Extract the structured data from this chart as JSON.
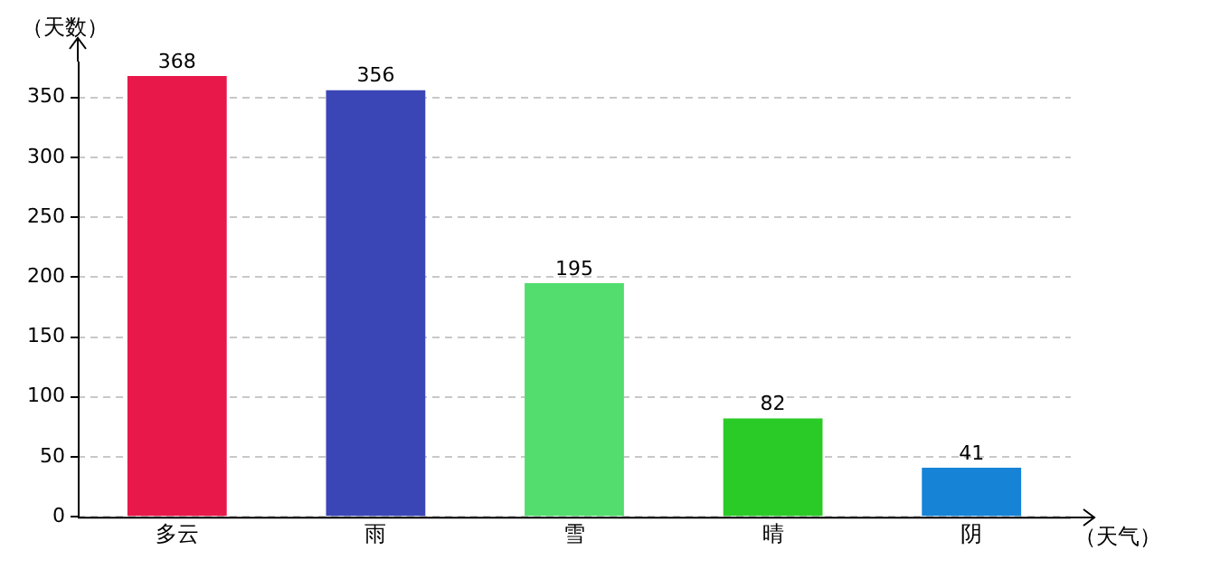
{
  "chart_data": {
    "type": "bar",
    "xlabel": "（天气）",
    "ylabel": "（天数）",
    "categories": [
      "多云",
      "雨",
      "雪",
      "晴",
      "阴"
    ],
    "values": [
      368,
      356,
      195,
      82,
      41
    ],
    "colors": [
      "#e8194a",
      "#3a46b6",
      "#52dd6e",
      "#2bcb27",
      "#1683d6"
    ],
    "ylim": [
      0,
      380
    ],
    "yticks": [
      0,
      50,
      100,
      150,
      200,
      250,
      300,
      350
    ],
    "grid": "y",
    "data_labels": true,
    "legend": false
  }
}
